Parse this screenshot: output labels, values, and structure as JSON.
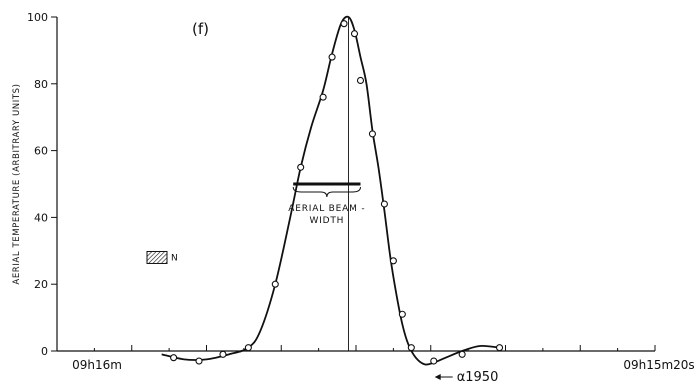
{
  "chart_data": {
    "type": "line",
    "panel_label": "(f)",
    "ylabel": "AERIAL TEMPERATURE (ARBITRARY UNITS)",
    "xlabel": "",
    "ylim": [
      0,
      100
    ],
    "y_ticks": [
      0,
      20,
      40,
      60,
      80,
      100
    ],
    "x_tick_labels": {
      "left": "09h16m",
      "right": "09h15m20s"
    },
    "x_scale_note": "x values in seconds of right ascension measured from 09h16m00s, increasing toward the right (earlier RA)",
    "xlim": [
      0,
      40
    ],
    "observed_points": {
      "x": [
        7.8,
        9.5,
        11.1,
        12.8,
        14.6,
        16.3,
        17.8,
        18.4,
        19.2,
        19.9,
        20.3,
        21.1,
        21.9,
        22.5,
        23.1,
        23.7,
        25.2,
        27.1,
        29.6
      ],
      "y": [
        -2,
        -3,
        -1,
        1,
        20,
        55,
        76,
        88,
        98,
        95,
        81,
        65,
        44,
        27,
        11,
        1,
        -3,
        -1,
        1
      ]
    },
    "fitted_curve": {
      "x": [
        7.0,
        8.5,
        10.0,
        11.5,
        12.8,
        13.6,
        14.6,
        15.6,
        16.3,
        17.0,
        17.8,
        18.4,
        19.0,
        19.5,
        19.9,
        20.3,
        20.7,
        21.1,
        21.5,
        21.9,
        22.3,
        22.7,
        23.1,
        23.5,
        24.0,
        24.6,
        25.2,
        26.0,
        27.1,
        28.3,
        29.6
      ],
      "y": [
        -1,
        -2.5,
        -2.5,
        -1,
        1,
        6,
        20,
        40,
        55,
        67,
        78,
        89,
        98,
        100,
        96,
        88,
        80,
        66,
        55,
        42,
        28,
        17,
        8,
        2,
        -2,
        -4,
        -3.5,
        -2,
        0,
        1.5,
        1
      ]
    },
    "annotations": {
      "beamwidth_label": "AERIAL BEAM - WIDTH",
      "beamwidth_bar": {
        "x_start": 15.8,
        "x_end": 20.3,
        "y": 50
      },
      "peak_line_x": 19.5,
      "noise_label": "N",
      "noise_level_y": 28,
      "ra_marker_label": "α1950",
      "ra_marker_x": 26.2
    },
    "grid": false,
    "legend": "none"
  }
}
